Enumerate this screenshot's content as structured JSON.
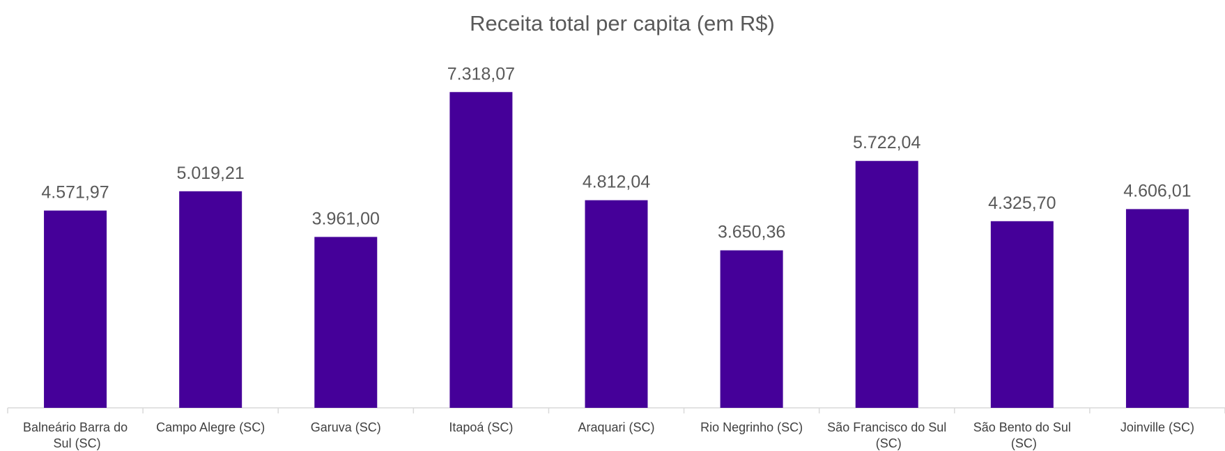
{
  "chart_data": {
    "type": "bar",
    "title": "Receita total per capita (em R$)",
    "categories": [
      "Balneário Barra do Sul (SC)",
      "Campo Alegre (SC)",
      "Garuva (SC)",
      "Itapoá (SC)",
      "Araquari (SC)",
      "Rio Negrinho (SC)",
      "São Francisco do Sul (SC)",
      "São Bento do Sul (SC)",
      "Joinville (SC)"
    ],
    "values": [
      4571.97,
      5019.21,
      3961.0,
      7318.07,
      4812.04,
      3650.36,
      5722.04,
      4325.7,
      4606.01
    ],
    "value_labels": [
      "4.571,97",
      "5.019,21",
      "3.961,00",
      "7.318,07",
      "4.812,04",
      "3.650,36",
      "5.722,04",
      "4.325,70",
      "4.606,01"
    ],
    "color": "#450099",
    "ylim": [
      0,
      8000
    ]
  }
}
